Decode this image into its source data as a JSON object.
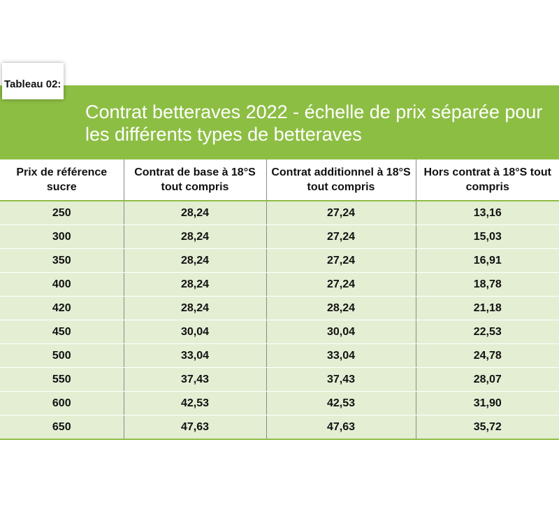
{
  "label": "Tableau 02:",
  "title": "Contrat betteraves 2022 - échelle de prix séparée pour les différents types de betteraves",
  "colors": {
    "banner": "#8dbe44",
    "row_fill": "#e3eed3",
    "title_text": "#ffffff"
  },
  "table": {
    "headers": [
      "Prix de référence sucre",
      "Contrat de base à 18°S tout compris",
      "Contrat additionnel à 18°S tout compris",
      "Hors contrat à 18°S tout compris"
    ],
    "rows": [
      [
        "250",
        "28,24",
        "27,24",
        "13,16"
      ],
      [
        "300",
        "28,24",
        "27,24",
        "15,03"
      ],
      [
        "350",
        "28,24",
        "27,24",
        "16,91"
      ],
      [
        "400",
        "28,24",
        "27,24",
        "18,78"
      ],
      [
        "420",
        "28,24",
        "28,24",
        "21,18"
      ],
      [
        "450",
        "30,04",
        "30,04",
        "22,53"
      ],
      [
        "500",
        "33,04",
        "33,04",
        "24,78"
      ],
      [
        "550",
        "37,43",
        "37,43",
        "28,07"
      ],
      [
        "600",
        "42,53",
        "42,53",
        "31,90"
      ],
      [
        "650",
        "47,63",
        "47,63",
        "35,72"
      ]
    ]
  }
}
